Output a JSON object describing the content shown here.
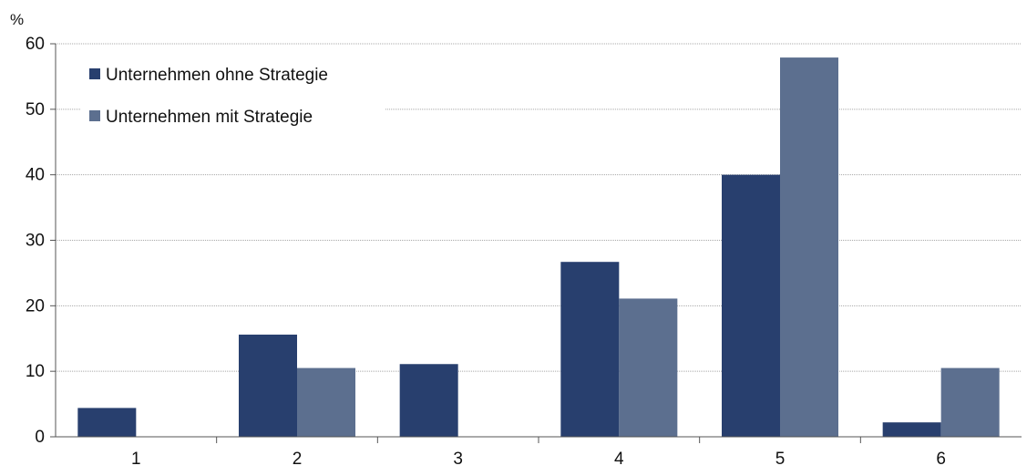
{
  "chart_data": {
    "type": "bar",
    "ylabel": "%",
    "ylim": [
      0,
      60
    ],
    "yticks": [
      0,
      10,
      20,
      30,
      40,
      50,
      60
    ],
    "grid": true,
    "legend_position": "top-left",
    "categories": [
      "1",
      "2",
      "3",
      "4",
      "5",
      "6"
    ],
    "series": [
      {
        "name": "Unternehmen ohne Strategie",
        "color": "#283f6e",
        "values": [
          4.4,
          15.6,
          11.1,
          26.7,
          40.0,
          2.2
        ]
      },
      {
        "name": "Unternehmen mit Strategie",
        "color": "#5c6f8f",
        "values": [
          0,
          10.5,
          0,
          21.1,
          57.9,
          10.5
        ]
      }
    ]
  }
}
